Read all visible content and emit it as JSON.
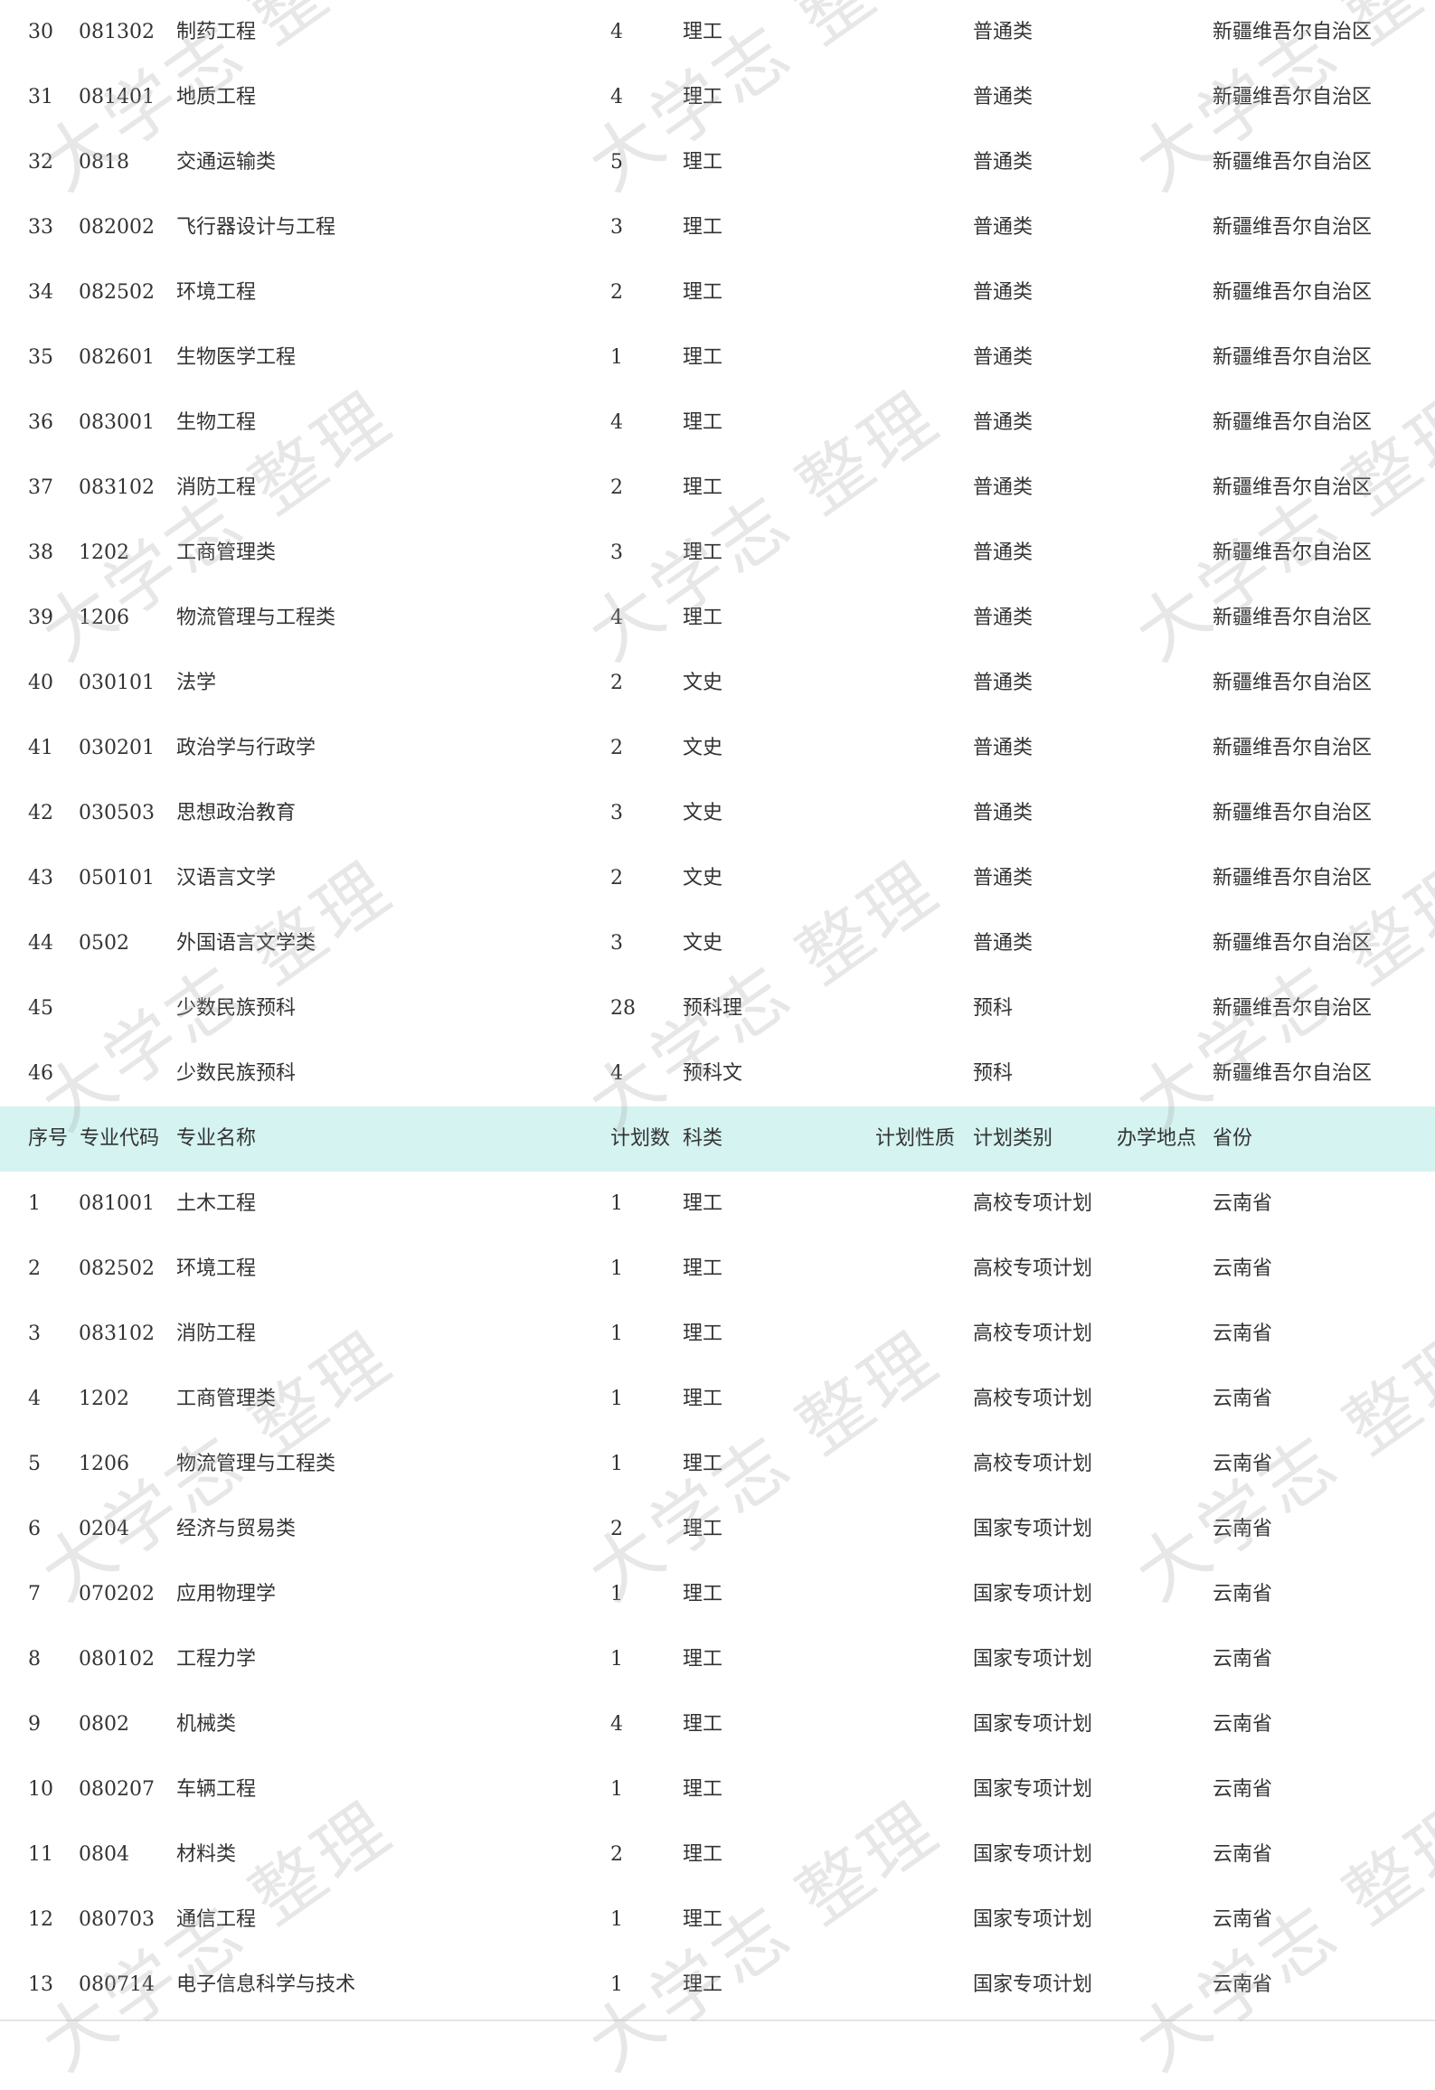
{
  "watermark": "大学志 整理",
  "header": [
    "序号",
    "专业代码",
    "专业名称",
    "计划数",
    "科类",
    "计划性质",
    "计划类别",
    "办学地点",
    "省份"
  ],
  "colors": {
    "header_bg": "#d4f3f1",
    "text": "#333333"
  },
  "section1_rows": [
    [
      "30",
      "081302",
      "制药工程",
      "4",
      "理工",
      "普通类",
      "新疆维吾尔自治区"
    ],
    [
      "31",
      "081401",
      "地质工程",
      "4",
      "理工",
      "普通类",
      "新疆维吾尔自治区"
    ],
    [
      "32",
      "0818",
      "交通运输类",
      "5",
      "理工",
      "普通类",
      "新疆维吾尔自治区"
    ],
    [
      "33",
      "082002",
      "飞行器设计与工程",
      "3",
      "理工",
      "普通类",
      "新疆维吾尔自治区"
    ],
    [
      "34",
      "082502",
      "环境工程",
      "2",
      "理工",
      "普通类",
      "新疆维吾尔自治区"
    ],
    [
      "35",
      "082601",
      "生物医学工程",
      "1",
      "理工",
      "普通类",
      "新疆维吾尔自治区"
    ],
    [
      "36",
      "083001",
      "生物工程",
      "4",
      "理工",
      "普通类",
      "新疆维吾尔自治区"
    ],
    [
      "37",
      "083102",
      "消防工程",
      "2",
      "理工",
      "普通类",
      "新疆维吾尔自治区"
    ],
    [
      "38",
      "1202",
      "工商管理类",
      "3",
      "理工",
      "普通类",
      "新疆维吾尔自治区"
    ],
    [
      "39",
      "1206",
      "物流管理与工程类",
      "4",
      "理工",
      "普通类",
      "新疆维吾尔自治区"
    ],
    [
      "40",
      "030101",
      "法学",
      "2",
      "文史",
      "普通类",
      "新疆维吾尔自治区"
    ],
    [
      "41",
      "030201",
      "政治学与行政学",
      "2",
      "文史",
      "普通类",
      "新疆维吾尔自治区"
    ],
    [
      "42",
      "030503",
      "思想政治教育",
      "3",
      "文史",
      "普通类",
      "新疆维吾尔自治区"
    ],
    [
      "43",
      "050101",
      "汉语言文学",
      "2",
      "文史",
      "普通类",
      "新疆维吾尔自治区"
    ],
    [
      "44",
      "0502",
      "外国语言文学类",
      "3",
      "文史",
      "普通类",
      "新疆维吾尔自治区"
    ],
    [
      "45",
      "",
      "少数民族预科",
      "28",
      "预科理",
      "预科",
      "新疆维吾尔自治区"
    ],
    [
      "46",
      "",
      "少数民族预科",
      "4",
      "预科文",
      "预科",
      "新疆维吾尔自治区"
    ]
  ],
  "section2_rows": [
    [
      "1",
      "081001",
      "土木工程",
      "1",
      "理工",
      "高校专项计划",
      "云南省"
    ],
    [
      "2",
      "082502",
      "环境工程",
      "1",
      "理工",
      "高校专项计划",
      "云南省"
    ],
    [
      "3",
      "083102",
      "消防工程",
      "1",
      "理工",
      "高校专项计划",
      "云南省"
    ],
    [
      "4",
      "1202",
      "工商管理类",
      "1",
      "理工",
      "高校专项计划",
      "云南省"
    ],
    [
      "5",
      "1206",
      "物流管理与工程类",
      "1",
      "理工",
      "高校专项计划",
      "云南省"
    ],
    [
      "6",
      "0204",
      "经济与贸易类",
      "2",
      "理工",
      "国家专项计划",
      "云南省"
    ],
    [
      "7",
      "070202",
      "应用物理学",
      "1",
      "理工",
      "国家专项计划",
      "云南省"
    ],
    [
      "8",
      "080102",
      "工程力学",
      "1",
      "理工",
      "国家专项计划",
      "云南省"
    ],
    [
      "9",
      "0802",
      "机械类",
      "4",
      "理工",
      "国家专项计划",
      "云南省"
    ],
    [
      "10",
      "080207",
      "车辆工程",
      "1",
      "理工",
      "国家专项计划",
      "云南省"
    ],
    [
      "11",
      "0804",
      "材料类",
      "2",
      "理工",
      "国家专项计划",
      "云南省"
    ],
    [
      "12",
      "080703",
      "通信工程",
      "1",
      "理工",
      "国家专项计划",
      "云南省"
    ],
    [
      "13",
      "080714",
      "电子信息科学与技术",
      "1",
      "理工",
      "国家专项计划",
      "云南省"
    ]
  ]
}
